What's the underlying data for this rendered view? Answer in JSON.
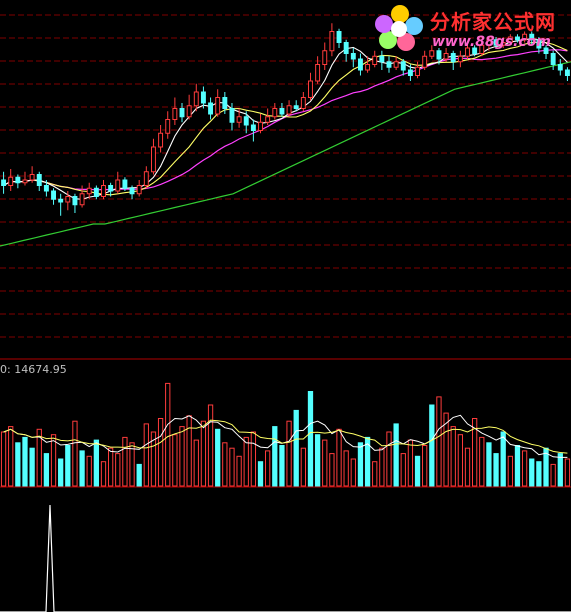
{
  "logo": {
    "title": "分析家公式网",
    "url": "www.88gs.com"
  },
  "volume_readout": "0: 14674.95",
  "colors": {
    "background": "#000000",
    "grid": "#800000",
    "up_candle": "#ff3c3c",
    "down_candle": "#54ffff",
    "ma_short": "#ffffff",
    "ma_mid": "#ffff66",
    "ma_long": "#ff40ff",
    "ma_trend": "#33cc33",
    "indicator": "#ffffff"
  },
  "chart_data": [
    {
      "type": "candlestick",
      "panel": "price",
      "ylim": [
        0,
        100
      ],
      "grid": "horizontal dashed",
      "candles": [
        {
          "o": 40,
          "c": 38,
          "h": 43,
          "l": 35
        },
        {
          "o": 38,
          "c": 41,
          "h": 44,
          "l": 36
        },
        {
          "o": 41,
          "c": 39,
          "h": 42,
          "l": 37
        },
        {
          "o": 39,
          "c": 40,
          "h": 43,
          "l": 38
        },
        {
          "o": 40,
          "c": 42,
          "h": 45,
          "l": 39
        },
        {
          "o": 42,
          "c": 38,
          "h": 43,
          "l": 36
        },
        {
          "o": 38,
          "c": 36,
          "h": 40,
          "l": 34
        },
        {
          "o": 36,
          "c": 33,
          "h": 37,
          "l": 31
        },
        {
          "o": 33,
          "c": 32,
          "h": 35,
          "l": 27
        },
        {
          "o": 32,
          "c": 34,
          "h": 36,
          "l": 29
        },
        {
          "o": 34,
          "c": 31,
          "h": 35,
          "l": 28
        },
        {
          "o": 31,
          "c": 35,
          "h": 38,
          "l": 30
        },
        {
          "o": 35,
          "c": 37,
          "h": 39,
          "l": 33
        },
        {
          "o": 37,
          "c": 34,
          "h": 38,
          "l": 33
        },
        {
          "o": 34,
          "c": 38,
          "h": 40,
          "l": 33
        },
        {
          "o": 38,
          "c": 36,
          "h": 39,
          "l": 34
        },
        {
          "o": 36,
          "c": 40,
          "h": 43,
          "l": 35
        },
        {
          "o": 40,
          "c": 37,
          "h": 41,
          "l": 36
        },
        {
          "o": 37,
          "c": 35,
          "h": 38,
          "l": 33
        },
        {
          "o": 35,
          "c": 38,
          "h": 40,
          "l": 34
        },
        {
          "o": 38,
          "c": 43,
          "h": 45,
          "l": 37
        },
        {
          "o": 43,
          "c": 52,
          "h": 55,
          "l": 42
        },
        {
          "o": 52,
          "c": 57,
          "h": 60,
          "l": 50
        },
        {
          "o": 57,
          "c": 62,
          "h": 65,
          "l": 55
        },
        {
          "o": 62,
          "c": 66,
          "h": 70,
          "l": 60
        },
        {
          "o": 66,
          "c": 63,
          "h": 68,
          "l": 61
        },
        {
          "o": 63,
          "c": 67,
          "h": 71,
          "l": 62
        },
        {
          "o": 67,
          "c": 72,
          "h": 75,
          "l": 65
        },
        {
          "o": 72,
          "c": 68,
          "h": 74,
          "l": 66
        },
        {
          "o": 68,
          "c": 64,
          "h": 70,
          "l": 62
        },
        {
          "o": 64,
          "c": 70,
          "h": 73,
          "l": 63
        },
        {
          "o": 70,
          "c": 66,
          "h": 72,
          "l": 64
        },
        {
          "o": 66,
          "c": 61,
          "h": 68,
          "l": 58
        },
        {
          "o": 61,
          "c": 63,
          "h": 66,
          "l": 59
        },
        {
          "o": 63,
          "c": 60,
          "h": 65,
          "l": 57
        },
        {
          "o": 60,
          "c": 58,
          "h": 62,
          "l": 54
        },
        {
          "o": 58,
          "c": 61,
          "h": 64,
          "l": 57
        },
        {
          "o": 61,
          "c": 63,
          "h": 66,
          "l": 60
        },
        {
          "o": 63,
          "c": 66,
          "h": 68,
          "l": 62
        },
        {
          "o": 66,
          "c": 64,
          "h": 68,
          "l": 63
        },
        {
          "o": 64,
          "c": 67,
          "h": 69,
          "l": 63
        },
        {
          "o": 67,
          "c": 66,
          "h": 69,
          "l": 65
        },
        {
          "o": 66,
          "c": 70,
          "h": 72,
          "l": 65
        },
        {
          "o": 70,
          "c": 76,
          "h": 79,
          "l": 69
        },
        {
          "o": 76,
          "c": 82,
          "h": 85,
          "l": 75
        },
        {
          "o": 82,
          "c": 87,
          "h": 90,
          "l": 80
        },
        {
          "o": 87,
          "c": 94,
          "h": 97,
          "l": 85
        },
        {
          "o": 94,
          "c": 90,
          "h": 95,
          "l": 88
        },
        {
          "o": 90,
          "c": 86,
          "h": 91,
          "l": 83
        },
        {
          "o": 86,
          "c": 84,
          "h": 88,
          "l": 81
        },
        {
          "o": 84,
          "c": 80,
          "h": 86,
          "l": 78
        },
        {
          "o": 80,
          "c": 82,
          "h": 85,
          "l": 79
        },
        {
          "o": 82,
          "c": 85,
          "h": 87,
          "l": 81
        },
        {
          "o": 85,
          "c": 83,
          "h": 87,
          "l": 80
        },
        {
          "o": 83,
          "c": 81,
          "h": 85,
          "l": 79
        },
        {
          "o": 81,
          "c": 83,
          "h": 85,
          "l": 80
        },
        {
          "o": 83,
          "c": 80,
          "h": 84,
          "l": 78
        },
        {
          "o": 80,
          "c": 78,
          "h": 82,
          "l": 76
        },
        {
          "o": 78,
          "c": 81,
          "h": 83,
          "l": 77
        },
        {
          "o": 81,
          "c": 85,
          "h": 87,
          "l": 80
        },
        {
          "o": 85,
          "c": 87,
          "h": 89,
          "l": 84
        },
        {
          "o": 87,
          "c": 84,
          "h": 88,
          "l": 82
        },
        {
          "o": 84,
          "c": 86,
          "h": 88,
          "l": 83
        },
        {
          "o": 86,
          "c": 83,
          "h": 87,
          "l": 80
        },
        {
          "o": 83,
          "c": 85,
          "h": 87,
          "l": 81
        },
        {
          "o": 85,
          "c": 88,
          "h": 90,
          "l": 84
        },
        {
          "o": 88,
          "c": 86,
          "h": 89,
          "l": 85
        },
        {
          "o": 86,
          "c": 89,
          "h": 91,
          "l": 85
        },
        {
          "o": 89,
          "c": 91,
          "h": 92,
          "l": 87
        },
        {
          "o": 91,
          "c": 89,
          "h": 92,
          "l": 88
        },
        {
          "o": 89,
          "c": 90,
          "h": 92,
          "l": 88
        },
        {
          "o": 90,
          "c": 92,
          "h": 93,
          "l": 89
        },
        {
          "o": 92,
          "c": 91,
          "h": 93,
          "l": 90
        },
        {
          "o": 91,
          "c": 93,
          "h": 94,
          "l": 90
        },
        {
          "o": 93,
          "c": 91,
          "h": 94,
          "l": 89
        },
        {
          "o": 91,
          "c": 88,
          "h": 92,
          "l": 86
        },
        {
          "o": 88,
          "c": 86,
          "h": 89,
          "l": 84
        },
        {
          "o": 86,
          "c": 82,
          "h": 87,
          "l": 80
        },
        {
          "o": 82,
          "c": 80,
          "h": 84,
          "l": 78
        },
        {
          "o": 80,
          "c": 78,
          "h": 81,
          "l": 76
        }
      ],
      "ma_trend": [
        16,
        17,
        18,
        19,
        20,
        21,
        22,
        23,
        24,
        24,
        25,
        26,
        27,
        28,
        29,
        30,
        31,
        32,
        33,
        34,
        35,
        37,
        39,
        41,
        43,
        45,
        47,
        49,
        51,
        53,
        55,
        57,
        59,
        61,
        63,
        65,
        67,
        69,
        71,
        73,
        74,
        75,
        76,
        77,
        78,
        79,
        80,
        81,
        82,
        83
      ]
    },
    {
      "type": "bar",
      "panel": "volume",
      "ylim": [
        0,
        40
      ],
      "values": [
        20,
        22,
        16,
        18,
        14,
        21,
        12,
        19,
        10,
        15,
        24,
        13,
        11,
        17,
        9,
        14,
        12,
        18,
        16,
        8,
        23,
        20,
        25,
        38,
        19,
        22,
        26,
        17,
        24,
        30,
        21,
        16,
        14,
        11,
        18,
        20,
        9,
        13,
        22,
        15,
        24,
        28,
        14,
        35,
        19,
        17,
        12,
        21,
        13,
        10,
        16,
        18,
        9,
        14,
        20,
        23,
        12,
        17,
        11,
        15,
        30,
        33,
        27,
        22,
        19,
        14,
        25,
        18,
        16,
        12,
        20,
        11,
        15,
        13,
        10,
        9,
        14,
        8,
        12,
        10
      ]
    },
    {
      "type": "line",
      "panel": "indicator",
      "ylim": [
        0,
        100
      ],
      "x": [
        0,
        46,
        50,
        54,
        58,
        571
      ],
      "values": [
        0,
        0,
        100,
        0,
        0,
        0
      ]
    }
  ]
}
